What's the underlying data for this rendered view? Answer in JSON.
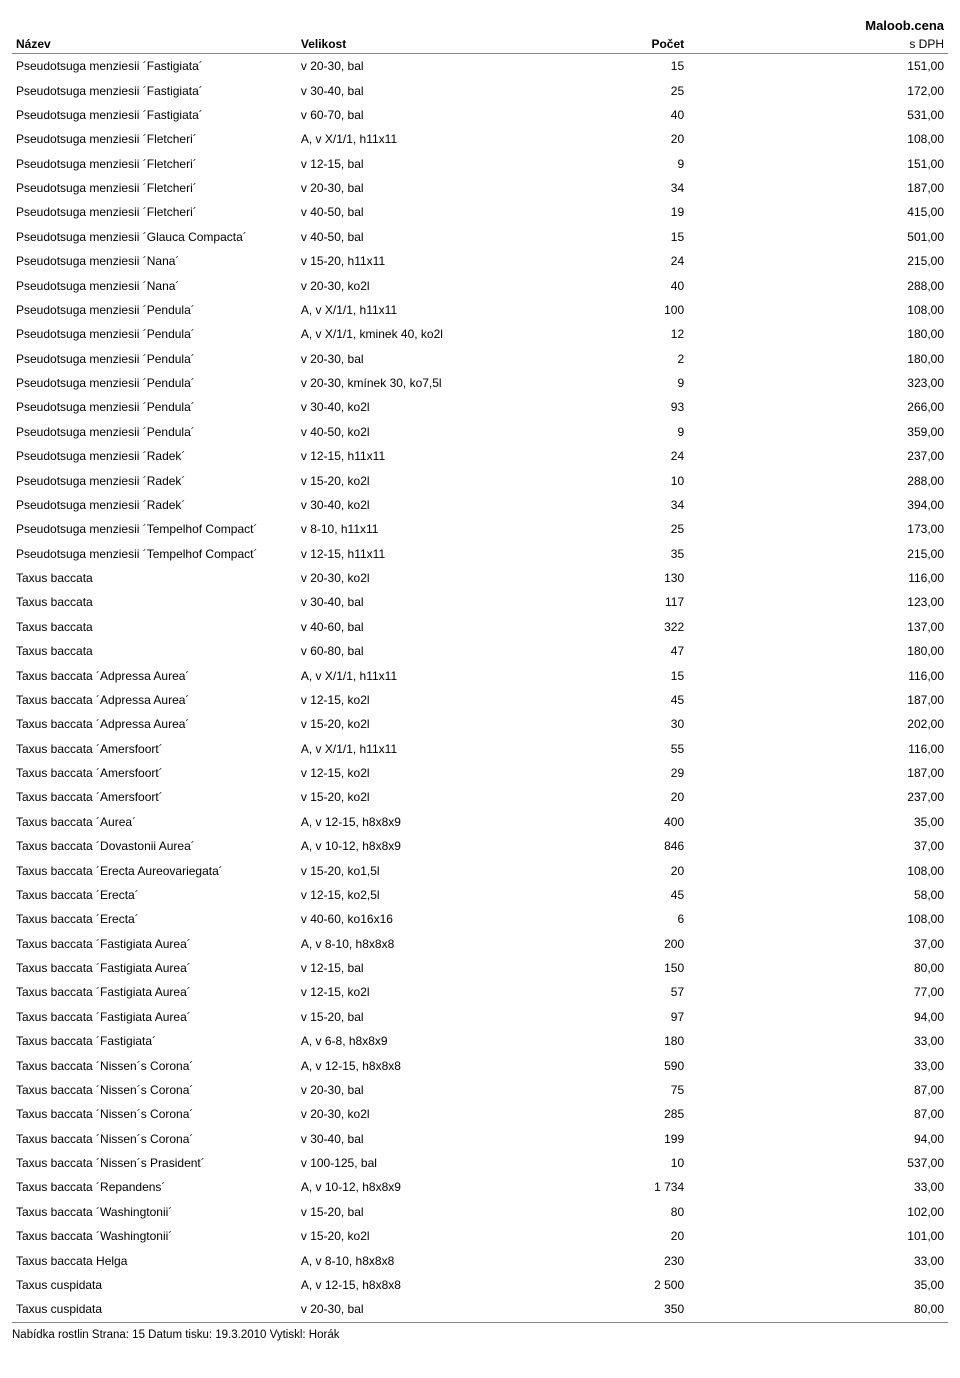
{
  "header": {
    "name": "Název",
    "size": "Velikost",
    "count": "Počet",
    "price_top": "Maloob.cena",
    "price_sub": "s DPH"
  },
  "rows": [
    {
      "name": "Pseudotsuga menziesii ´Fastigiata´",
      "size": "v 20-30, bal",
      "count": "15",
      "price": "151,00"
    },
    {
      "name": "Pseudotsuga menziesii ´Fastigiata´",
      "size": "v 30-40, bal",
      "count": "25",
      "price": "172,00"
    },
    {
      "name": "Pseudotsuga menziesii ´Fastigiata´",
      "size": "v 60-70, bal",
      "count": "40",
      "price": "531,00"
    },
    {
      "name": "Pseudotsuga menziesii ´Fletcheri´",
      "size": "A, v X/1/1, h11x11",
      "count": "20",
      "price": "108,00"
    },
    {
      "name": "Pseudotsuga menziesii ´Fletcheri´",
      "size": "v 12-15, bal",
      "count": "9",
      "price": "151,00"
    },
    {
      "name": "Pseudotsuga menziesii ´Fletcheri´",
      "size": "v 20-30, bal",
      "count": "34",
      "price": "187,00"
    },
    {
      "name": "Pseudotsuga menziesii ´Fletcheri´",
      "size": "v 40-50, bal",
      "count": "19",
      "price": "415,00"
    },
    {
      "name": "Pseudotsuga menziesii ´Glauca Compacta´",
      "size": "v 40-50, bal",
      "count": "15",
      "price": "501,00"
    },
    {
      "name": "Pseudotsuga menziesii ´Nana´",
      "size": "v 15-20, h11x11",
      "count": "24",
      "price": "215,00"
    },
    {
      "name": "Pseudotsuga menziesii ´Nana´",
      "size": "v 20-30, ko2l",
      "count": "40",
      "price": "288,00"
    },
    {
      "name": "Pseudotsuga menziesii ´Pendula´",
      "size": "A, v X/1/1, h11x11",
      "count": "100",
      "price": "108,00"
    },
    {
      "name": "Pseudotsuga menziesii ´Pendula´",
      "size": "A, v X/1/1, kminek 40, ko2l",
      "count": "12",
      "price": "180,00"
    },
    {
      "name": "Pseudotsuga menziesii ´Pendula´",
      "size": "v 20-30, bal",
      "count": "2",
      "price": "180,00"
    },
    {
      "name": "Pseudotsuga menziesii ´Pendula´",
      "size": "v 20-30, kmínek 30, ko7,5l",
      "count": "9",
      "price": "323,00"
    },
    {
      "name": "Pseudotsuga menziesii ´Pendula´",
      "size": "v 30-40, ko2l",
      "count": "93",
      "price": "266,00"
    },
    {
      "name": "Pseudotsuga menziesii ´Pendula´",
      "size": "v 40-50, ko2l",
      "count": "9",
      "price": "359,00"
    },
    {
      "name": "Pseudotsuga menziesii ´Radek´",
      "size": "v 12-15, h11x11",
      "count": "24",
      "price": "237,00"
    },
    {
      "name": "Pseudotsuga menziesii ´Radek´",
      "size": "v 15-20, ko2l",
      "count": "10",
      "price": "288,00"
    },
    {
      "name": "Pseudotsuga menziesii ´Radek´",
      "size": "v 30-40, ko2l",
      "count": "34",
      "price": "394,00"
    },
    {
      "name": "Pseudotsuga menziesii ´Tempelhof Compact´",
      "size": "v 8-10, h11x11",
      "count": "25",
      "price": "173,00"
    },
    {
      "name": "Pseudotsuga menziesii ´Tempelhof Compact´",
      "size": "v 12-15, h11x11",
      "count": "35",
      "price": "215,00"
    },
    {
      "name": "Taxus baccata",
      "size": "v 20-30, ko2l",
      "count": "130",
      "price": "116,00"
    },
    {
      "name": "Taxus baccata",
      "size": "v 30-40, bal",
      "count": "117",
      "price": "123,00"
    },
    {
      "name": "Taxus baccata",
      "size": "v 40-60, bal",
      "count": "322",
      "price": "137,00"
    },
    {
      "name": "Taxus baccata",
      "size": "v 60-80, bal",
      "count": "47",
      "price": "180,00"
    },
    {
      "name": "Taxus baccata ´Adpressa Aurea´",
      "size": "A, v X/1/1, h11x11",
      "count": "15",
      "price": "116,00"
    },
    {
      "name": "Taxus baccata ´Adpressa Aurea´",
      "size": "v 12-15, ko2l",
      "count": "45",
      "price": "187,00"
    },
    {
      "name": "Taxus baccata ´Adpressa Aurea´",
      "size": "v 15-20, ko2l",
      "count": "30",
      "price": "202,00"
    },
    {
      "name": "Taxus baccata ´Amersfoort´",
      "size": "A, v X/1/1, h11x11",
      "count": "55",
      "price": "116,00"
    },
    {
      "name": "Taxus baccata ´Amersfoort´",
      "size": "v 12-15, ko2l",
      "count": "29",
      "price": "187,00"
    },
    {
      "name": "Taxus baccata ´Amersfoort´",
      "size": "v 15-20, ko2l",
      "count": "20",
      "price": "237,00"
    },
    {
      "name": "Taxus baccata ´Aurea´",
      "size": "A, v 12-15, h8x8x9",
      "count": "400",
      "price": "35,00"
    },
    {
      "name": "Taxus baccata ´Dovastonii Aurea´",
      "size": "A, v 10-12, h8x8x9",
      "count": "846",
      "price": "37,00"
    },
    {
      "name": "Taxus baccata ´Erecta Aureovariegata´",
      "size": "v 15-20, ko1,5l",
      "count": "20",
      "price": "108,00"
    },
    {
      "name": "Taxus baccata ´Erecta´",
      "size": "v 12-15, ko2,5l",
      "count": "45",
      "price": "58,00"
    },
    {
      "name": "Taxus baccata ´Erecta´",
      "size": "v 40-60, ko16x16",
      "count": "6",
      "price": "108,00"
    },
    {
      "name": "Taxus baccata ´Fastigiata Aurea´",
      "size": "A, v 8-10, h8x8x8",
      "count": "200",
      "price": "37,00"
    },
    {
      "name": "Taxus baccata ´Fastigiata Aurea´",
      "size": "v 12-15, bal",
      "count": "150",
      "price": "80,00"
    },
    {
      "name": "Taxus baccata ´Fastigiata Aurea´",
      "size": "v 12-15, ko2l",
      "count": "57",
      "price": "77,00"
    },
    {
      "name": "Taxus baccata ´Fastigiata Aurea´",
      "size": "v 15-20, bal",
      "count": "97",
      "price": "94,00"
    },
    {
      "name": "Taxus baccata ´Fastigiata´",
      "size": "A, v 6-8, h8x8x9",
      "count": "180",
      "price": "33,00"
    },
    {
      "name": "Taxus baccata ´Nissen´s Corona´",
      "size": "A, v 12-15, h8x8x8",
      "count": "590",
      "price": "33,00"
    },
    {
      "name": "Taxus baccata ´Nissen´s Corona´",
      "size": "v 20-30, bal",
      "count": "75",
      "price": "87,00"
    },
    {
      "name": "Taxus baccata ´Nissen´s Corona´",
      "size": "v 20-30, ko2l",
      "count": "285",
      "price": "87,00"
    },
    {
      "name": "Taxus baccata ´Nissen´s Corona´",
      "size": "v 30-40, bal",
      "count": "199",
      "price": "94,00"
    },
    {
      "name": "Taxus baccata ´Nissen´s Prasident´",
      "size": "v 100-125, bal",
      "count": "10",
      "price": "537,00"
    },
    {
      "name": "Taxus baccata ´Repandens´",
      "size": "A, v 10-12, h8x8x9",
      "count": "1 734",
      "price": "33,00"
    },
    {
      "name": "Taxus baccata ´Washingtonii´",
      "size": "v 15-20, bal",
      "count": "80",
      "price": "102,00"
    },
    {
      "name": "Taxus baccata ´Washingtonii´",
      "size": "v 15-20, ko2l",
      "count": "20",
      "price": "101,00"
    },
    {
      "name": "Taxus baccata Helga",
      "size": "A, v 8-10, h8x8x8",
      "count": "230",
      "price": "33,00"
    },
    {
      "name": "Taxus cuspidata",
      "size": "A, v 12-15, h8x8x8",
      "count": "2 500",
      "price": "35,00"
    },
    {
      "name": "Taxus cuspidata",
      "size": "v 20-30, bal",
      "count": "350",
      "price": "80,00"
    }
  ],
  "footer": "Nabídka rostlin Strana: 15 Datum tisku: 19.3.2010 Vytiskl: Horák"
}
